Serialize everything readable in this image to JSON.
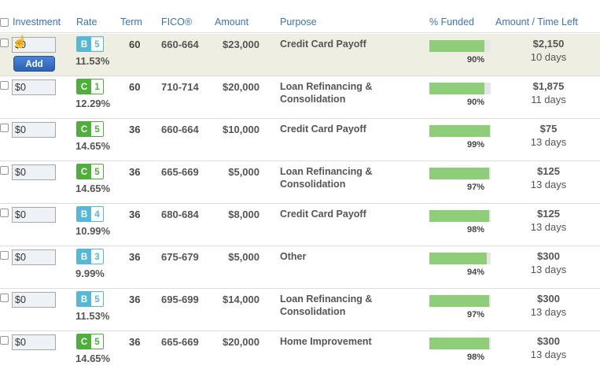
{
  "header": {
    "investment": "Investment",
    "rate": "Rate",
    "term": "Term",
    "fico": "FICO®",
    "amount": "Amount",
    "purpose": "Purpose",
    "funded": "% Funded",
    "time_left": "Amount / Time Left"
  },
  "add_label": "Add",
  "colors": {
    "grade_b": "#56b8d8",
    "grade_c": "#4fae3c",
    "bar_fill": "#8fce78",
    "link": "#3b73b9"
  },
  "loans": [
    {
      "investment": "$0",
      "grade": "B",
      "subgrade": "5",
      "rate": "11.53%",
      "term": "60",
      "fico": "660-664",
      "amount": "$23,000",
      "purpose": "Credit Card Payoff",
      "funded": 90,
      "funded_label": "90%",
      "amount_left": "$2,150",
      "time_left": "10 days"
    },
    {
      "investment": "$0",
      "grade": "C",
      "subgrade": "1",
      "rate": "12.29%",
      "term": "60",
      "fico": "710-714",
      "amount": "$20,000",
      "purpose": "Loan Refinancing & Consolidation",
      "funded": 90,
      "funded_label": "90%",
      "amount_left": "$1,875",
      "time_left": "11 days"
    },
    {
      "investment": "$0",
      "grade": "C",
      "subgrade": "5",
      "rate": "14.65%",
      "term": "36",
      "fico": "660-664",
      "amount": "$10,000",
      "purpose": "Credit Card Payoff",
      "funded": 99,
      "funded_label": "99%",
      "amount_left": "$75",
      "time_left": "13 days"
    },
    {
      "investment": "$0",
      "grade": "C",
      "subgrade": "5",
      "rate": "14.65%",
      "term": "36",
      "fico": "665-669",
      "amount": "$5,000",
      "purpose": "Loan Refinancing & Consolidation",
      "funded": 97,
      "funded_label": "97%",
      "amount_left": "$125",
      "time_left": "13 days"
    },
    {
      "investment": "$0",
      "grade": "B",
      "subgrade": "4",
      "rate": "10.99%",
      "term": "36",
      "fico": "680-684",
      "amount": "$8,000",
      "purpose": "Credit Card Payoff",
      "funded": 98,
      "funded_label": "98%",
      "amount_left": "$125",
      "time_left": "13 days"
    },
    {
      "investment": "$0",
      "grade": "B",
      "subgrade": "3",
      "rate": "9.99%",
      "term": "36",
      "fico": "675-679",
      "amount": "$5,000",
      "purpose": "Other",
      "funded": 94,
      "funded_label": "94%",
      "amount_left": "$300",
      "time_left": "13 days"
    },
    {
      "investment": "$0",
      "grade": "B",
      "subgrade": "5",
      "rate": "11.53%",
      "term": "36",
      "fico": "695-699",
      "amount": "$14,000",
      "purpose": "Loan Refinancing & Consolidation",
      "funded": 97,
      "funded_label": "97%",
      "amount_left": "$300",
      "time_left": "13 days"
    },
    {
      "investment": "$0",
      "grade": "C",
      "subgrade": "5",
      "rate": "14.65%",
      "term": "36",
      "fico": "665-669",
      "amount": "$20,000",
      "purpose": "Home Improvement",
      "funded": 98,
      "funded_label": "98%",
      "amount_left": "$300",
      "time_left": "13 days"
    }
  ]
}
